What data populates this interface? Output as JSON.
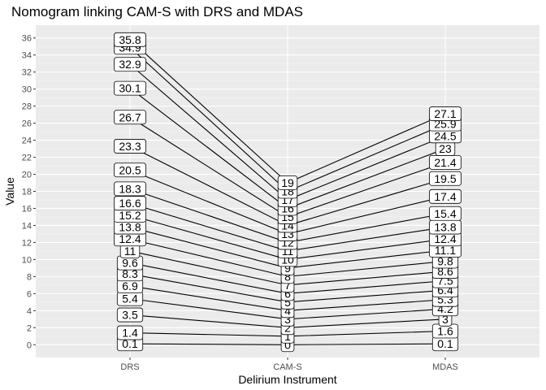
{
  "chart_data": {
    "type": "line",
    "title": "Nomogram linking CAM-S with DRS and MDAS",
    "xlabel": "Delirium Instrument",
    "ylabel": "Value",
    "categories": [
      "DRS",
      "CAM-S",
      "MDAS"
    ],
    "ylim": [
      -1.5,
      37.5
    ],
    "yticks": [
      0,
      2,
      4,
      6,
      8,
      10,
      12,
      14,
      16,
      18,
      20,
      22,
      24,
      26,
      28,
      30,
      32,
      34,
      36
    ],
    "grid": true,
    "legend": "none",
    "series": [
      {
        "values": [
          0.1,
          0,
          0.1
        ],
        "labels": [
          "0.1",
          "0",
          "0.1"
        ]
      },
      {
        "values": [
          1.4,
          1,
          1.6
        ],
        "labels": [
          "1.4",
          "1",
          "1.6"
        ]
      },
      {
        "values": [
          3.5,
          2,
          3
        ],
        "labels": [
          "3.5",
          "2",
          "3"
        ]
      },
      {
        "values": [
          5.4,
          3,
          4.2
        ],
        "labels": [
          "5.4",
          "3",
          "4.2"
        ]
      },
      {
        "values": [
          6.9,
          4,
          5.3
        ],
        "labels": [
          "6.9",
          "4",
          "5.3"
        ]
      },
      {
        "values": [
          8.3,
          5,
          6.4
        ],
        "labels": [
          "8.3",
          "5",
          "6.4"
        ]
      },
      {
        "values": [
          9.6,
          6,
          7.5
        ],
        "labels": [
          "9.6",
          "6",
          "7.5"
        ]
      },
      {
        "values": [
          11,
          7,
          8.6
        ],
        "labels": [
          "11",
          "7",
          "8.6"
        ]
      },
      {
        "values": [
          12.4,
          8,
          9.8
        ],
        "labels": [
          "12.4",
          "8",
          "9.8"
        ]
      },
      {
        "values": [
          13.8,
          9,
          11.1
        ],
        "labels": [
          "13.8",
          "9",
          "11.1"
        ]
      },
      {
        "values": [
          15.2,
          10,
          12.4
        ],
        "labels": [
          "15.2",
          "10",
          "12.4"
        ]
      },
      {
        "values": [
          16.6,
          11,
          13.8
        ],
        "labels": [
          "16.6",
          "11",
          "13.8"
        ]
      },
      {
        "values": [
          18.3,
          12,
          15.4
        ],
        "labels": [
          "18.3",
          "12",
          "15.4"
        ]
      },
      {
        "values": [
          20.5,
          13,
          17.4
        ],
        "labels": [
          "20.5",
          "13",
          "17.4"
        ]
      },
      {
        "values": [
          23.3,
          14,
          19.5
        ],
        "labels": [
          "23.3",
          "14",
          "19.5"
        ]
      },
      {
        "values": [
          26.7,
          15,
          21.4
        ],
        "labels": [
          "26.7",
          "15",
          "21.4"
        ]
      },
      {
        "values": [
          30.1,
          16,
          23
        ],
        "labels": [
          "30.1",
          "16",
          "23"
        ]
      },
      {
        "values": [
          32.9,
          17,
          24.5
        ],
        "labels": [
          "32.9",
          "17",
          "24.5"
        ]
      },
      {
        "values": [
          34.9,
          18,
          25.9
        ],
        "labels": [
          "34.9",
          "18",
          "25.9"
        ]
      },
      {
        "values": [
          35.8,
          19,
          27.1
        ],
        "labels": [
          "35.8",
          "19",
          "27.1"
        ]
      }
    ]
  }
}
